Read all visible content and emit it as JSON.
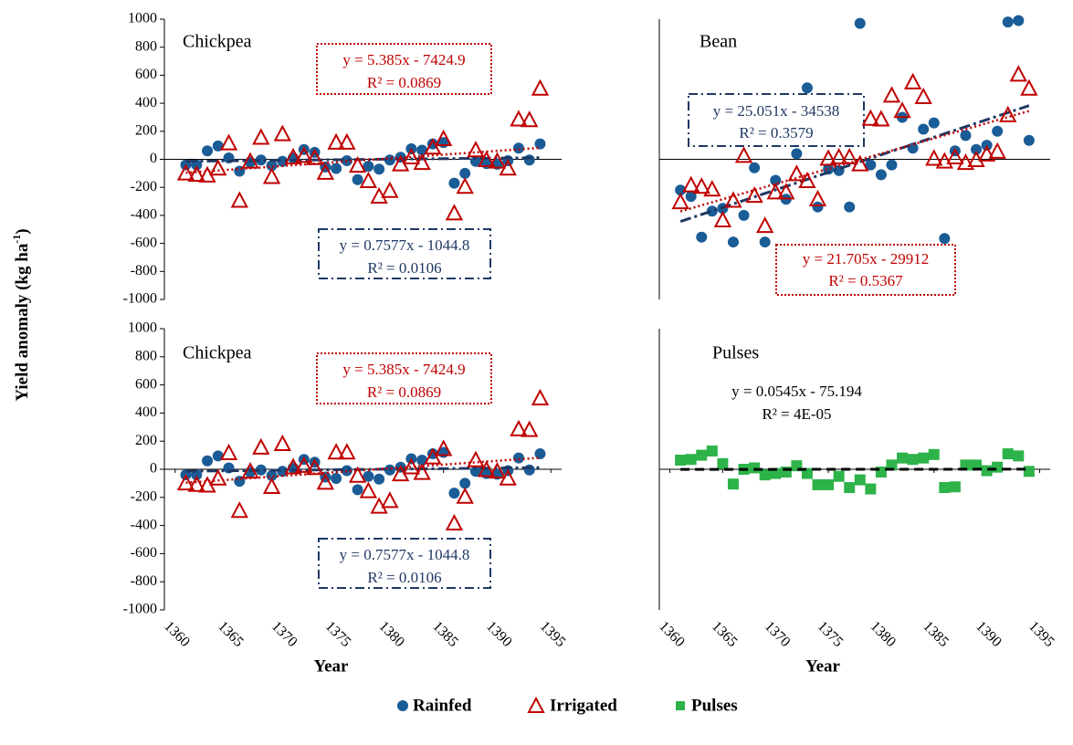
{
  "ylabel": {
    "text": "Yield anomaly (kg ha",
    "superscript": "-1",
    "end": ")"
  },
  "chart_data": [
    {
      "type": "scatter",
      "title": "Chickpea",
      "x": [
        1361,
        1362,
        1363,
        1364,
        1365,
        1366,
        1367,
        1368,
        1369,
        1370,
        1371,
        1372,
        1373,
        1374,
        1375,
        1376,
        1377,
        1378,
        1379,
        1380,
        1381,
        1382,
        1383,
        1384,
        1385,
        1386,
        1387,
        1388,
        1389,
        1390,
        1391,
        1392,
        1393,
        1394
      ],
      "xlim": [
        1359,
        1396
      ],
      "ylim": [
        -1000,
        1000
      ],
      "yticks": [
        -1000,
        -800,
        -600,
        -400,
        -200,
        0,
        200,
        400,
        600,
        800,
        1000
      ],
      "series": [
        {
          "name": "Rainfed",
          "marker": "circle",
          "color": "#1a5c96",
          "values": [
            -40,
            -40,
            60,
            95,
            10,
            -85,
            -20,
            -5,
            -45,
            -15,
            10,
            70,
            50,
            -55,
            -65,
            -10,
            -145,
            -50,
            -70,
            -5,
            15,
            75,
            65,
            110,
            120,
            -170,
            -100,
            -15,
            -30,
            -35,
            -10,
            80,
            -5,
            110
          ],
          "trendline": {
            "slope": 0.7577,
            "intercept": -1044.8,
            "color": "#1f3864",
            "style": "dashdot",
            "equation": "y = 0.7577x - 1044.8",
            "r2": "R² = 0.0106"
          }
        },
        {
          "name": "Irrigated",
          "marker": "triangle",
          "color": "#c00000",
          "values": [
            -105,
            -115,
            -120,
            -70,
            110,
            -300,
            -20,
            150,
            -130,
            175,
            10,
            20,
            5,
            -100,
            115,
            115,
            -50,
            -160,
            -270,
            -230,
            -40,
            10,
            -30,
            80,
            140,
            -390,
            -200,
            60,
            -10,
            -20,
            -70,
            280,
            275,
            500
          ],
          "trendline": {
            "slope": 5.385,
            "intercept": -7424.9,
            "color": "#c00000",
            "style": "dotted",
            "equation": "y = 5.385x - 7424.9",
            "r2": "R² = 0.0869"
          }
        }
      ]
    },
    {
      "type": "scatter",
      "title": "Bean",
      "x": [
        1361,
        1362,
        1363,
        1364,
        1365,
        1366,
        1367,
        1368,
        1369,
        1370,
        1371,
        1372,
        1373,
        1374,
        1375,
        1376,
        1377,
        1378,
        1379,
        1380,
        1381,
        1382,
        1383,
        1384,
        1385,
        1386,
        1387,
        1388,
        1389,
        1390,
        1391,
        1392,
        1393,
        1394
      ],
      "xlim": [
        1359,
        1396
      ],
      "ylim": [
        -1000,
        1000
      ],
      "series": [
        {
          "marker": "circle",
          "color": "#1a5c96",
          "values": [
            -220,
            -265,
            -555,
            -370,
            -350,
            -590,
            -400,
            -60,
            -590,
            -150,
            -285,
            40,
            510,
            -340,
            -70,
            -80,
            -340,
            970,
            -40,
            -110,
            -40,
            300,
            80,
            215,
            260,
            -565,
            60,
            170,
            70,
            100,
            200,
            980,
            990,
            135
          ],
          "trendline": {
            "slope": 25.051,
            "intercept": -34538,
            "color": "#1f3864",
            "style": "dashdot",
            "equation": "y = 25.051x - 34538",
            "r2": "R² = 0.3579"
          }
        },
        {
          "marker": "triangle",
          "color": "#c00000",
          "values": [
            -310,
            -190,
            -200,
            -220,
            -440,
            -300,
            20,
            -265,
            -480,
            -240,
            -240,
            -110,
            -160,
            -290,
            0,
            10,
            10,
            -40,
            285,
            280,
            450,
            340,
            545,
            440,
            0,
            -20,
            10,
            -30,
            -10,
            30,
            50,
            310,
            600,
            500
          ],
          "trendline": {
            "slope": 21.705,
            "intercept": -29912,
            "color": "#c00000",
            "style": "dotted",
            "equation": "y = 21.705x - 29912",
            "r2": "R² = 0.5367"
          }
        }
      ]
    },
    {
      "type": "scatter",
      "title": "Chickpea",
      "xlabel": "Year",
      "x": [
        1361,
        1362,
        1363,
        1364,
        1365,
        1366,
        1367,
        1368,
        1369,
        1370,
        1371,
        1372,
        1373,
        1374,
        1375,
        1376,
        1377,
        1378,
        1379,
        1380,
        1381,
        1382,
        1383,
        1384,
        1385,
        1386,
        1387,
        1388,
        1389,
        1390,
        1391,
        1392,
        1393,
        1394
      ],
      "xlim": [
        1359,
        1396
      ],
      "ylim": [
        -1000,
        1000
      ],
      "xticks": [
        1360,
        1365,
        1370,
        1375,
        1380,
        1385,
        1390,
        1395
      ],
      "yticks": [
        -1000,
        -800,
        -600,
        -400,
        -200,
        0,
        200,
        400,
        600,
        800,
        1000
      ],
      "series": [
        {
          "marker": "circle",
          "color": "#1a5c96",
          "values": [
            -40,
            -40,
            60,
            95,
            10,
            -85,
            -20,
            -5,
            -45,
            -15,
            10,
            70,
            50,
            -55,
            -65,
            -10,
            -145,
            -50,
            -70,
            -5,
            15,
            75,
            65,
            110,
            120,
            -170,
            -100,
            -15,
            -30,
            -35,
            -10,
            80,
            -5,
            110
          ],
          "trendline": {
            "slope": 0.7577,
            "intercept": -1044.8,
            "color": "#1f3864",
            "style": "dashdot",
            "equation": "y = 0.7577x - 1044.8",
            "r2": "R² = 0.0106"
          }
        },
        {
          "marker": "triangle",
          "color": "#c00000",
          "values": [
            -105,
            -115,
            -120,
            -70,
            110,
            -300,
            -20,
            150,
            -130,
            175,
            10,
            20,
            5,
            -100,
            115,
            115,
            -50,
            -160,
            -270,
            -230,
            -40,
            10,
            -30,
            80,
            140,
            -390,
            -200,
            60,
            -10,
            -20,
            -70,
            280,
            275,
            500
          ],
          "trendline": {
            "slope": 5.385,
            "intercept": -7424.9,
            "color": "#c00000",
            "style": "dotted",
            "equation": "y = 5.385x - 7424.9",
            "r2": "R² = 0.0869"
          }
        }
      ]
    },
    {
      "type": "scatter",
      "title": "Pulses",
      "xlabel": "Year",
      "x": [
        1361,
        1362,
        1363,
        1364,
        1365,
        1366,
        1367,
        1368,
        1369,
        1370,
        1371,
        1372,
        1373,
        1374,
        1375,
        1376,
        1377,
        1378,
        1379,
        1380,
        1381,
        1382,
        1383,
        1384,
        1385,
        1386,
        1387,
        1388,
        1389,
        1390,
        1391,
        1392,
        1393,
        1394
      ],
      "xlim": [
        1359,
        1396
      ],
      "ylim": [
        -1000,
        1000
      ],
      "xticks": [
        1360,
        1365,
        1370,
        1375,
        1380,
        1385,
        1390,
        1395
      ],
      "series": [
        {
          "name": "Pulses",
          "marker": "square",
          "color": "#2db34a",
          "values": [
            65,
            70,
            100,
            130,
            40,
            -105,
            0,
            10,
            -40,
            -30,
            -20,
            25,
            -30,
            -110,
            -110,
            -50,
            -130,
            -75,
            -140,
            -20,
            30,
            80,
            70,
            80,
            105,
            -130,
            -125,
            30,
            30,
            -10,
            15,
            110,
            95,
            -15
          ],
          "trendline": {
            "slope": 0.0545,
            "intercept": -75.194,
            "color": "#000000",
            "style": "dashed",
            "equation": "y = 0.0545x - 75.194",
            "r2": "R² = 4E-05"
          }
        }
      ]
    }
  ]
}
